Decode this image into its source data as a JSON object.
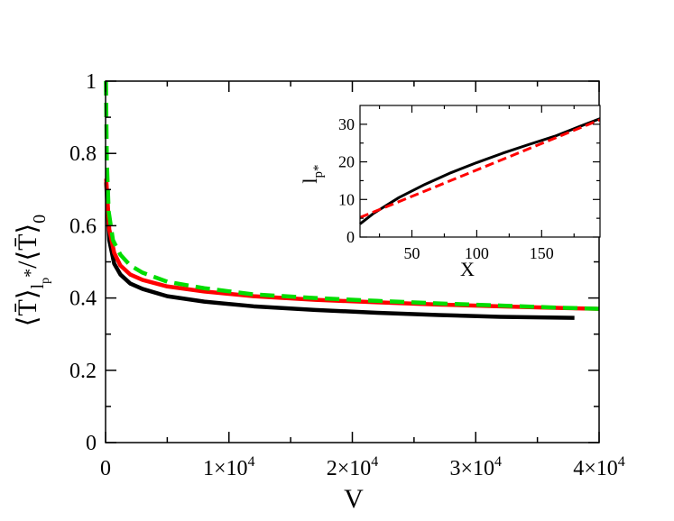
{
  "chart_data": [
    {
      "type": "line",
      "title": "",
      "xlabel": "V",
      "ylabel": "⟨T̄⟩_{l_p*}/⟨T̄⟩_0",
      "xlim": [
        0,
        40000
      ],
      "ylim": [
        0,
        1
      ],
      "x_ticks": [
        0,
        10000,
        20000,
        30000,
        40000
      ],
      "x_tick_labels": [
        "0",
        "1×10",
        "2×10",
        "3×10",
        "4×10"
      ],
      "x_tick_exponent": "4",
      "y_ticks": [
        0,
        0.2,
        0.4,
        0.6,
        0.8,
        1
      ],
      "y_tick_labels": [
        "0",
        "0.2",
        "0.4",
        "0.6",
        "0.8",
        "1"
      ],
      "grid": false,
      "legend": "none",
      "series": [
        {
          "color": "#000000",
          "style": "solid",
          "x": [
            50,
            300,
            700,
            1200,
            2000,
            3000,
            5000,
            8000,
            12000,
            17000,
            22000,
            27000,
            32000,
            36000,
            38000
          ],
          "y": [
            0.72,
            0.56,
            0.495,
            0.465,
            0.44,
            0.425,
            0.405,
            0.39,
            0.377,
            0.367,
            0.359,
            0.353,
            0.348,
            0.346,
            0.345
          ]
        },
        {
          "color": "#ff0000",
          "style": "solid",
          "x": [
            50,
            300,
            700,
            1200,
            2000,
            3000,
            5000,
            8000,
            12000,
            17000,
            22000,
            27000,
            32000,
            36000,
            40000
          ],
          "y": [
            0.73,
            0.59,
            0.525,
            0.49,
            0.465,
            0.45,
            0.432,
            0.418,
            0.405,
            0.395,
            0.388,
            0.382,
            0.377,
            0.373,
            0.37
          ]
        },
        {
          "color": "#00dd00",
          "style": "dashed",
          "x": [
            30,
            100,
            250,
            600,
            1200,
            2000,
            3000,
            5000,
            8000,
            12000,
            17000,
            22000,
            27000,
            32000,
            36000,
            40000
          ],
          "y": [
            1.0,
            0.78,
            0.64,
            0.56,
            0.52,
            0.49,
            0.47,
            0.445,
            0.427,
            0.41,
            0.4,
            0.392,
            0.385,
            0.379,
            0.374,
            0.37
          ]
        }
      ]
    },
    {
      "type": "line",
      "title": "",
      "xlabel": "X",
      "ylabel": "l_{p*}",
      "xlim": [
        10,
        195
      ],
      "ylim": [
        0,
        35
      ],
      "x_ticks": [
        50,
        100,
        150
      ],
      "x_tick_labels": [
        "50",
        "100",
        "150"
      ],
      "y_ticks": [
        0,
        10,
        20,
        30
      ],
      "y_tick_labels": [
        "0",
        "10",
        "20",
        "30"
      ],
      "grid": false,
      "legend": "none",
      "series": [
        {
          "color": "#000000",
          "style": "solid",
          "x": [
            10,
            20,
            40,
            60,
            80,
            100,
            120,
            140,
            160,
            180,
            195
          ],
          "y": [
            3.5,
            6.2,
            10.5,
            14.0,
            17.1,
            19.8,
            22.3,
            24.6,
            26.8,
            29.5,
            31.5
          ]
        },
        {
          "color": "#ff0000",
          "style": "dashed",
          "x": [
            10,
            195
          ],
          "y": [
            5.2,
            31.2
          ]
        }
      ]
    }
  ]
}
